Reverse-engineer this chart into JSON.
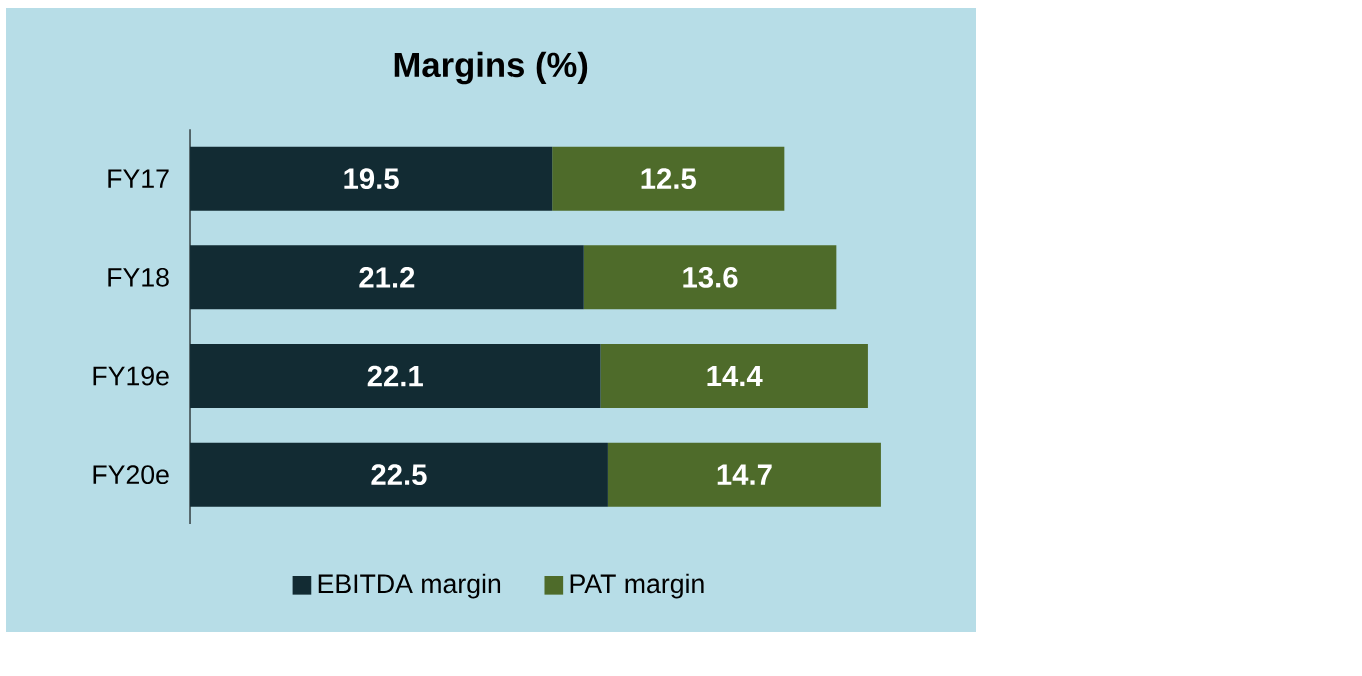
{
  "chart_data": {
    "type": "bar",
    "orientation": "horizontal",
    "stacked": true,
    "title": "**Margins (%)**",
    "categories": [
      "FY17",
      "FY18",
      "FY19e",
      "FY20e"
    ],
    "series": [
      {
        "name": "EBITDA margin",
        "color": "#122b33",
        "values": [
          19.5,
          21.2,
          22.1,
          22.5
        ]
      },
      {
        "name": "PAT margin",
        "color": "#4e6b2a",
        "values": [
          12.5,
          13.6,
          14.4,
          14.7
        ]
      }
    ],
    "data_labels": true,
    "legend": "bottom"
  }
}
